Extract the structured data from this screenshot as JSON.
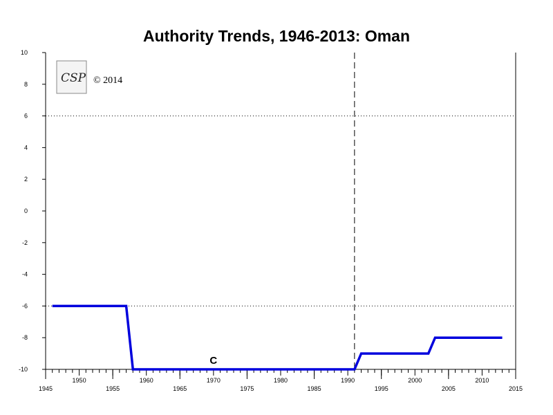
{
  "chart_data": {
    "type": "line",
    "title": "Authority Trends, 1946-2013: Oman",
    "xlabel": "",
    "ylabel": "",
    "xlim": [
      1945,
      2015
    ],
    "ylim": [
      -10,
      10
    ],
    "x_ticks_major": [
      1945,
      1955,
      1965,
      1975,
      1985,
      1995,
      2005,
      2015
    ],
    "x_ticks_minor_labeled": [
      1950,
      1960,
      1970,
      1980,
      1990,
      2000,
      2010
    ],
    "y_ticks": [
      10,
      8,
      6,
      4,
      2,
      0,
      -2,
      -4,
      -6,
      -8,
      -10
    ],
    "reference_lines_y": [
      6,
      -6
    ],
    "reference_line_x": 1991,
    "grid": false,
    "series": [
      {
        "color": "#0000dd",
        "points": [
          {
            "x": 1946,
            "y": -6
          },
          {
            "x": 1957,
            "y": -6
          },
          {
            "x": 1958,
            "y": -10
          },
          {
            "x": 1991,
            "y": -10
          },
          {
            "x": 1992,
            "y": -9
          },
          {
            "x": 2002,
            "y": -9
          },
          {
            "x": 2003,
            "y": -8
          },
          {
            "x": 2013,
            "y": -8
          }
        ]
      }
    ],
    "annotations": [
      {
        "text": "C",
        "x": 1970,
        "y": -10
      }
    ]
  },
  "logo": {
    "text": "CSP",
    "copyright": "© 2014"
  }
}
